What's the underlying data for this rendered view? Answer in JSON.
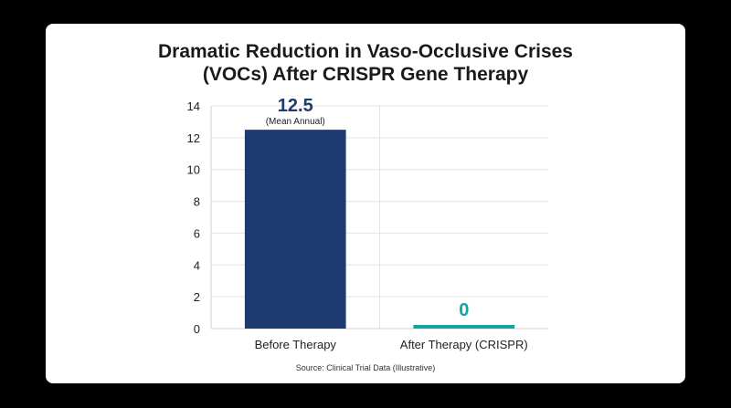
{
  "chart_data": {
    "type": "bar",
    "title_lines": [
      "Dramatic Reduction in Vaso-Occlusive Crises",
      "(VOCs) After CRISPR Gene Therapy"
    ],
    "categories": [
      "Before Therapy",
      "After Therapy (CRISPR)"
    ],
    "values": [
      12.5,
      0
    ],
    "value_labels": [
      "12.5",
      "0"
    ],
    "value_sublabels": [
      "(Mean Annual)",
      ""
    ],
    "bar_colors": [
      "#1e3a6e",
      "#14a3a0"
    ],
    "label_colors": [
      "#1e3a6e",
      "#14a3a0"
    ],
    "ylim": [
      0,
      14
    ],
    "yticks": [
      "0",
      "2",
      "4",
      "6",
      "8",
      "10",
      "12",
      "14"
    ],
    "xlabel": "",
    "ylabel": "",
    "grid": true,
    "source": "Source: Clinical Trial Data (Illustrative)"
  }
}
